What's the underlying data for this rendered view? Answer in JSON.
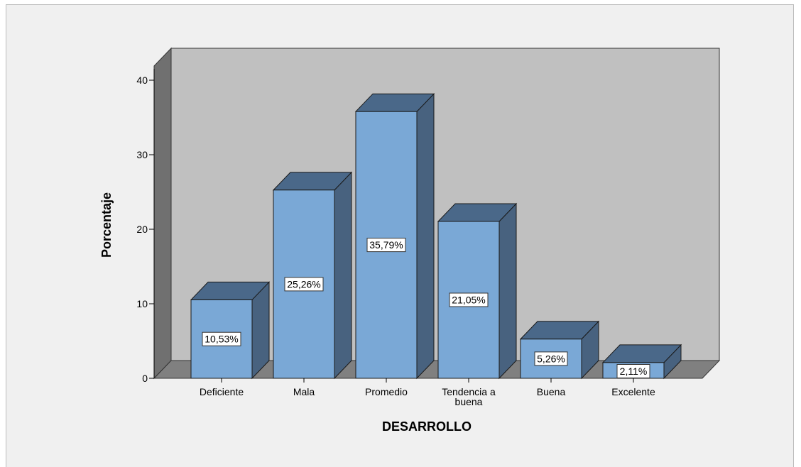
{
  "chart_data": {
    "type": "bar",
    "xlabel": "DESARROLLO",
    "ylabel": "Porcentaje",
    "categories": [
      "Deficiente",
      "Mala",
      "Promedio",
      "Tendencia a buena",
      "Buena",
      "Excelente"
    ],
    "category_lines": [
      [
        "Deficiente"
      ],
      [
        "Mala"
      ],
      [
        "Promedio"
      ],
      [
        "Tendencia a",
        "buena"
      ],
      [
        "Buena"
      ],
      [
        "Excelente"
      ]
    ],
    "values": [
      10.53,
      25.26,
      35.79,
      21.05,
      5.26,
      2.11
    ],
    "data_labels": [
      "10,53%",
      "25,26%",
      "35,79%",
      "21,05%",
      "5,26%",
      "2,11%"
    ],
    "yticks": [
      0,
      10,
      20,
      30,
      40
    ],
    "ylim": [
      0,
      40
    ],
    "grid": false,
    "legend": false,
    "three_d": true
  },
  "colors": {
    "background": "#f0f0f0",
    "plot_back_wall": "#c0c0c0",
    "plot_side_wall": "#707070",
    "plot_floor": "#808080",
    "bar_front": "#7aa8d6",
    "bar_top": "#4a6889",
    "bar_side": "#48627f",
    "bar_edge": "#1a1a1a",
    "label_box": "#ffffff"
  }
}
